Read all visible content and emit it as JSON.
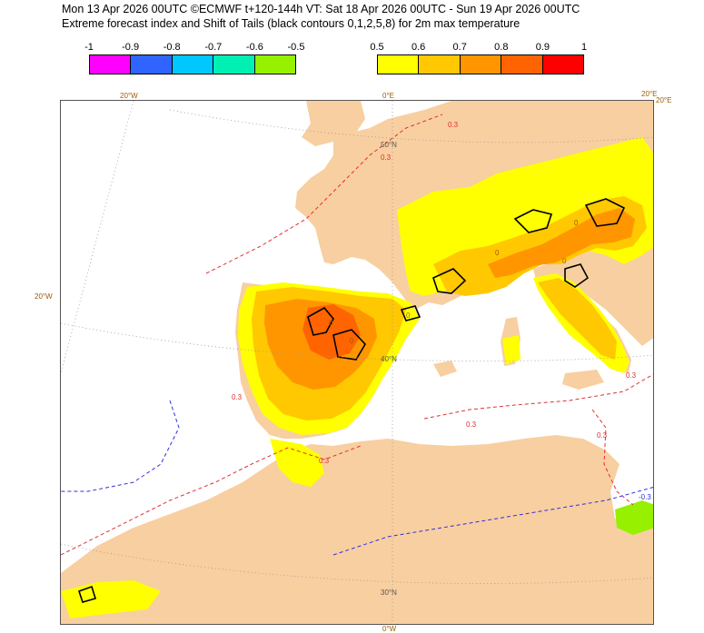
{
  "title": {
    "line1": "Mon 13 Apr 2026 00UTC ©ECMWF t+120-144h  VT: Sat 18 Apr 2026 00UTC - Sun 19 Apr 2026 00UTC",
    "line2": "Extreme forecast index and Shift of Tails (black contours 0,1,2,5,8) for 2m max temperature"
  },
  "legend": {
    "negative": {
      "ticks": [
        "-1",
        "-0.9",
        "-0.8",
        "-0.7",
        "-0.6",
        "-0.5"
      ],
      "colors": [
        "#ff00ff",
        "#2f64ff",
        "#00c8ff",
        "#00f0b4",
        "#96f000"
      ]
    },
    "positive": {
      "ticks": [
        "0.5",
        "0.6",
        "0.7",
        "0.8",
        "0.9",
        "1"
      ],
      "colors": [
        "#ffff00",
        "#ffc800",
        "#ff9600",
        "#ff6400",
        "#ff0000"
      ]
    }
  },
  "map": {
    "colors": {
      "land": "#f8cfa0",
      "sea": "#ffffff",
      "efi_05": "#ffff00",
      "efi_06": "#ffc800",
      "efi_07": "#ff9600",
      "efi_08": "#ff6400",
      "efi_neg": "#96f000",
      "contour_pos": "#e03030",
      "contour_neg": "#3030e0",
      "sot_contour": "#000000"
    },
    "graticule_labels": {
      "lon_20w_top": "20°W",
      "lon_0_top": "0°E",
      "lon_20e_top": "20°E",
      "lon_20e_top2": "20°E",
      "lon_20w_left": "20°W",
      "lon_0_bottom": "0°W",
      "lat_50n": "50°N",
      "lat_40n": "40°N",
      "lat_30n": "30°N"
    },
    "contour_labels": {
      "pos_03_a": "0.3",
      "pos_03_b": "0.3",
      "pos_03_c": "0.3",
      "pos_03_d": "0.3",
      "pos_03_e": "0.3",
      "pos_03_f": "0.3",
      "pos_03_g": "0.3",
      "neg_03_a": "-0.3",
      "sot_0_a": "0",
      "sot_0_b": "0",
      "sot_0_c": "0",
      "sot_0_d": "0",
      "sot_0_e": "0",
      "sot_0_f": "0"
    }
  }
}
